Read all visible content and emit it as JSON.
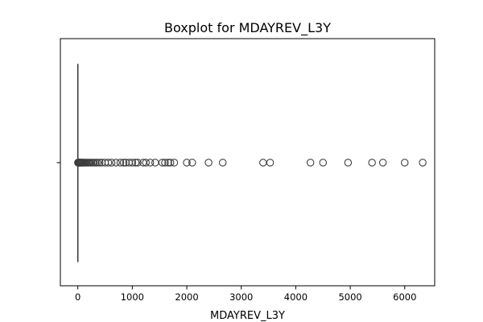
{
  "chart_data": {
    "type": "boxplot",
    "orientation": "horizontal",
    "title": "Boxplot for MDAYREV_L3Y",
    "xlabel": "MDAYREV_L3Y",
    "ylabel": "",
    "xlim": [
      -320,
      6550
    ],
    "xticks": [
      0,
      1000,
      2000,
      3000,
      4000,
      5000,
      6000
    ],
    "xtick_labels": [
      "0",
      "1000",
      "2000",
      "3000",
      "4000",
      "5000",
      "6000"
    ],
    "grid": false,
    "box": {
      "whisker_low": 0,
      "q1": 0,
      "median": 0,
      "q3": 0,
      "whisker_high": 0
    },
    "outliers": [
      3,
      5,
      8,
      12,
      16,
      20,
      25,
      30,
      36,
      42,
      50,
      58,
      66,
      75,
      85,
      95,
      110,
      125,
      140,
      160,
      180,
      200,
      225,
      250,
      275,
      300,
      330,
      360,
      400,
      440,
      500,
      560,
      620,
      700,
      780,
      840,
      880,
      940,
      1000,
      1060,
      1100,
      1200,
      1250,
      1330,
      1420,
      1550,
      1600,
      1660,
      1700,
      1770,
      2000,
      2100,
      2400,
      2660,
      3400,
      3530,
      4270,
      4500,
      4960,
      5400,
      5600,
      6000,
      6330
    ],
    "colors": {
      "box_line": "#3d3d3d",
      "outlier_edge": "#3d3d3d",
      "axes": "#000000"
    }
  }
}
